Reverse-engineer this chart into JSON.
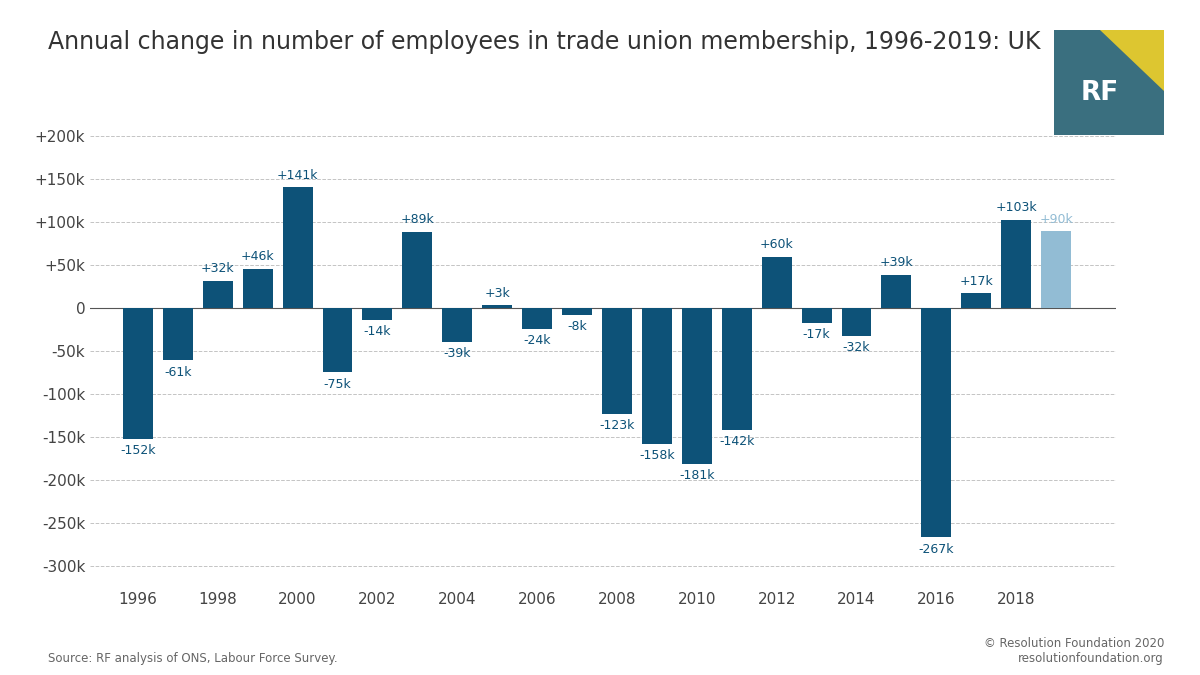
{
  "title": "Annual change in number of employees in trade union membership, 1996-2019: UK",
  "years": [
    1996,
    1997,
    1998,
    1999,
    2000,
    2001,
    2002,
    2003,
    2004,
    2005,
    2006,
    2007,
    2008,
    2009,
    2010,
    2011,
    2012,
    2013,
    2014,
    2015,
    2016,
    2017,
    2018,
    2019
  ],
  "values": [
    -152000,
    -61000,
    32000,
    46000,
    141000,
    -75000,
    -14000,
    89000,
    -39000,
    3000,
    -24000,
    -8000,
    -123000,
    -158000,
    -181000,
    -142000,
    60000,
    -17000,
    -32000,
    39000,
    -267000,
    17000,
    103000,
    90000
  ],
  "bar_labels": [
    "-152k",
    "-61k",
    "+32k",
    "+46k",
    "+141k",
    "-75k",
    "-14k",
    "+89k",
    "-39k",
    "+3k",
    "-24k",
    "-8k",
    "-123k",
    "-158k",
    "-181k",
    "-142k",
    "+60k",
    "-17k",
    "-32k",
    "+39k",
    "-267k",
    "+17k",
    "+103k",
    "+90k"
  ],
  "bar_color_dark": "#0d5278",
  "bar_color_light": "#92bcd4",
  "last_bar_index": 23,
  "bg_color": "#ffffff",
  "grid_color": "#aaaaaa",
  "ytick_values": [
    -300000,
    -250000,
    -200000,
    -150000,
    -100000,
    -50000,
    0,
    50000,
    100000,
    150000,
    200000
  ],
  "ytick_labels": [
    "-300k",
    "-250k",
    "-200k",
    "-150k",
    "-100k",
    "-50k",
    "0",
    "+50k",
    "+100k",
    "+150k",
    "+200k"
  ],
  "ylim": [
    -325000,
    225000
  ],
  "xlim": [
    1994.8,
    2020.5
  ],
  "source_text": "Source: RF analysis of ONS, Labour Force Survey.",
  "footer_text": "© Resolution Foundation 2020\nresolutionfoundation.org",
  "title_fontsize": 17,
  "label_fontsize": 9,
  "tick_fontsize": 11,
  "rf_logo_color_blue": "#3a6f7f",
  "rf_logo_color_yellow": "#ddc630"
}
